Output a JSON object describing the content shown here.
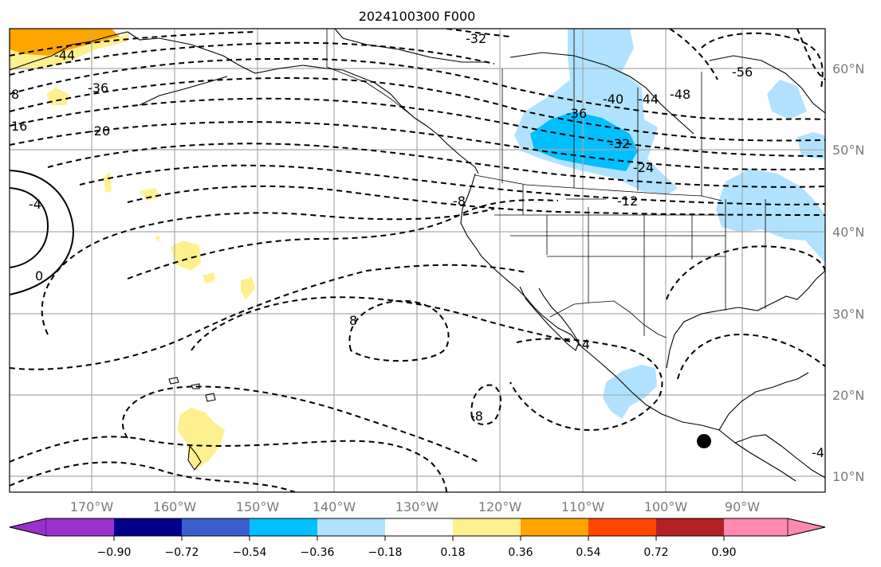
{
  "title": "2024100300 F000",
  "lon_labels": [
    "170°W",
    "160°W",
    "150°W",
    "140°W",
    "130°W",
    "120°W",
    "110°W",
    "100°W",
    "90°W"
  ],
  "lat_labels": [
    "60°N",
    "50°N",
    "40°N",
    "30°N",
    "20°N",
    "10°N"
  ],
  "contour_labels": [
    "-44",
    "-32",
    "-56",
    "-48",
    "-44",
    "-40",
    "-36",
    "-36",
    "-32",
    "-24",
    "-12",
    "-20",
    "8",
    "16",
    "-4",
    "0",
    "-8",
    "8",
    "-8",
    "-4",
    "-4"
  ],
  "colorbar": {
    "colors": [
      "#9932cc",
      "#00008b",
      "#3a5fcd",
      "#00bfff",
      "#b0e2ff",
      "#ffffff",
      "#fff08f",
      "#ffa500",
      "#ff4500",
      "#b22222",
      "#ff88b0"
    ],
    "tick_labels": [
      "−0.90",
      "−0.72",
      "−0.54",
      "−0.36",
      "−0.18",
      "0.18",
      "0.36",
      "0.54",
      "0.72",
      "0.90"
    ]
  },
  "marker": "filled-circle"
}
